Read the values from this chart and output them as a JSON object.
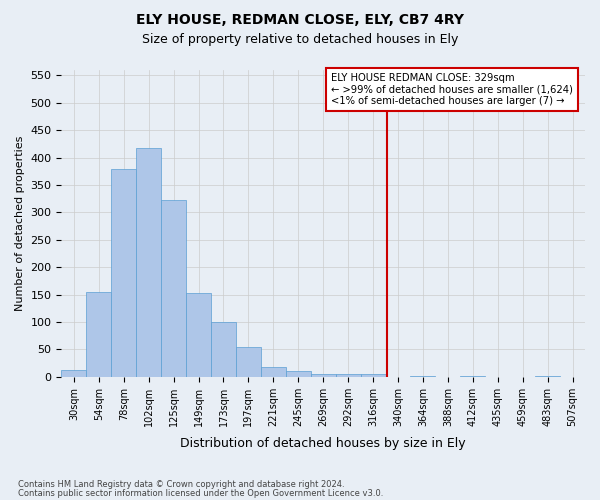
{
  "title": "ELY HOUSE, REDMAN CLOSE, ELY, CB7 4RY",
  "subtitle": "Size of property relative to detached houses in Ely",
  "xlabel": "Distribution of detached houses by size in Ely",
  "ylabel": "Number of detached properties",
  "footer_line1": "Contains HM Land Registry data © Crown copyright and database right 2024.",
  "footer_line2": "Contains public sector information licensed under the Open Government Licence v3.0.",
  "bin_labels": [
    "30sqm",
    "54sqm",
    "78sqm",
    "102sqm",
    "125sqm",
    "149sqm",
    "173sqm",
    "197sqm",
    "221sqm",
    "245sqm",
    "269sqm",
    "292sqm",
    "316sqm",
    "340sqm",
    "364sqm",
    "388sqm",
    "412sqm",
    "435sqm",
    "459sqm",
    "483sqm",
    "507sqm"
  ],
  "bar_values": [
    13,
    155,
    380,
    418,
    322,
    153,
    100,
    55,
    18,
    10,
    5,
    5,
    5,
    0,
    2,
    0,
    2,
    0,
    0,
    2,
    0
  ],
  "bar_color": "#aec6e8",
  "bar_edge_color": "#5a9fd4",
  "vline_bin_index": 12.54,
  "ylim": [
    0,
    560
  ],
  "yticks": [
    0,
    50,
    100,
    150,
    200,
    250,
    300,
    350,
    400,
    450,
    500,
    550
  ],
  "grid_color": "#cccccc",
  "background_color": "#e8eef5",
  "legend_title": "ELY HOUSE REDMAN CLOSE: 329sqm",
  "legend_line1": "← >99% of detached houses are smaller (1,624)",
  "legend_line2": "<1% of semi-detached houses are larger (7) →",
  "legend_box_color": "#ffffff",
  "legend_box_edge_color": "#cc0000",
  "vline_color": "#cc0000"
}
